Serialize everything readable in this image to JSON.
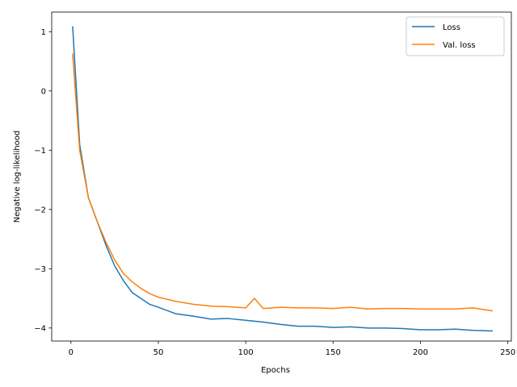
{
  "chart_data": {
    "type": "line",
    "title": "",
    "xlabel": "Epochs",
    "ylabel": "Negative log-likelihood",
    "xlim": [
      -11,
      252
    ],
    "ylim": [
      -4.22,
      1.33
    ],
    "x_ticks": [
      0,
      50,
      100,
      150,
      200,
      250
    ],
    "x_tick_labels": [
      "0",
      "50",
      "100",
      "150",
      "200",
      "250"
    ],
    "y_ticks": [
      1,
      0,
      -1,
      -2,
      -3,
      -4
    ],
    "y_tick_labels": [
      "1",
      "0",
      "−1",
      "−2",
      "−3",
      "−4"
    ],
    "grid": false,
    "legend_position": "top-right",
    "series": [
      {
        "name": "Loss",
        "color": "#1f77b4",
        "x": [
          1,
          5,
          10,
          15,
          20,
          25,
          30,
          35,
          40,
          45,
          50,
          60,
          70,
          80,
          90,
          100,
          110,
          120,
          130,
          140,
          150,
          160,
          170,
          180,
          190,
          200,
          210,
          220,
          230,
          241
        ],
        "y": [
          1.08,
          -0.9,
          -1.8,
          -2.2,
          -2.6,
          -2.95,
          -3.2,
          -3.4,
          -3.5,
          -3.6,
          -3.65,
          -3.76,
          -3.8,
          -3.85,
          -3.84,
          -3.87,
          -3.9,
          -3.94,
          -3.97,
          -3.97,
          -3.99,
          -3.98,
          -4.0,
          -4.0,
          -4.01,
          -4.03,
          -4.03,
          -4.02,
          -4.04,
          -4.05
        ]
      },
      {
        "name": "Val. loss",
        "color": "#ff7f0e",
        "x": [
          1,
          5,
          10,
          15,
          20,
          25,
          30,
          35,
          40,
          45,
          50,
          60,
          70,
          80,
          90,
          100,
          105,
          110,
          120,
          130,
          140,
          150,
          160,
          170,
          180,
          190,
          200,
          210,
          220,
          230,
          241
        ],
        "y": [
          0.62,
          -1.0,
          -1.8,
          -2.2,
          -2.55,
          -2.85,
          -3.08,
          -3.22,
          -3.33,
          -3.42,
          -3.48,
          -3.55,
          -3.6,
          -3.63,
          -3.64,
          -3.66,
          -3.5,
          -3.67,
          -3.65,
          -3.66,
          -3.66,
          -3.67,
          -3.65,
          -3.68,
          -3.67,
          -3.67,
          -3.68,
          -3.68,
          -3.68,
          -3.66,
          -3.71
        ]
      }
    ]
  }
}
